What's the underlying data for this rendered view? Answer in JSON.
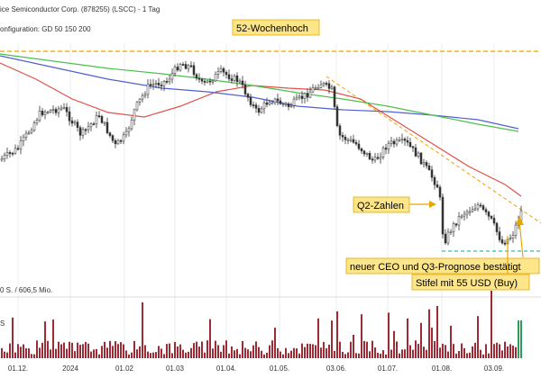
{
  "header": {
    "title": "ice Semiconductor Corp. (878255) (LSCC) - 1 Tag",
    "config": "onfiguration: GD 50 150 200"
  },
  "volume_header": {
    "label": "0 S. / 606,5 Mio.",
    "sublabel": "S"
  },
  "chart_data": {
    "type": "candlestick",
    "x_ticks": [
      "01.12.",
      "2024",
      "01.02",
      "01.03",
      "01.04.",
      "01.05.",
      "03.06.",
      "01.07.",
      "01.08.",
      "03.09."
    ],
    "series": [
      {
        "name": "GD 50",
        "color": "#e0504a"
      },
      {
        "name": "GD 150",
        "color": "#5060d0"
      },
      {
        "name": "GD 200",
        "color": "#4cc04c"
      }
    ],
    "resistance_level": "52-Wochenhoch",
    "support_level_color": "#30c0a0",
    "annotations": [
      {
        "text": "52-Wochenhoch"
      },
      {
        "text": "Q2-Zahlen"
      },
      {
        "text": "neuer CEO und Q3-Prognose bestätigt"
      },
      {
        "text": "Stifel mit 55 USD (Buy)"
      }
    ],
    "colors": {
      "up": "#3a3a3a",
      "down": "#3a3a3a",
      "volume": "#9e2a35",
      "volume_last": "#2a9e5a"
    }
  }
}
